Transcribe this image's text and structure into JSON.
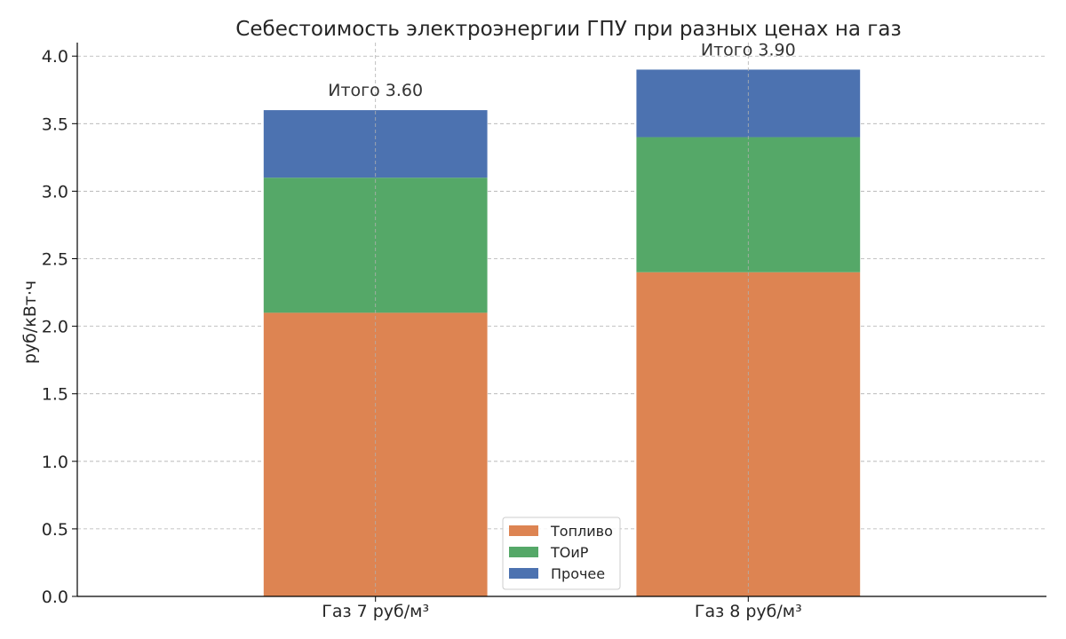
{
  "chart_data": {
    "type": "bar",
    "stacked": true,
    "title": "Себестоимость электроэнергии ГПУ при разных ценах на газ",
    "xlabel": "",
    "ylabel": "руб/кВт·ч",
    "ylim": [
      0,
      4.1
    ],
    "yticks": [
      "0.0",
      "0.5",
      "1.0",
      "1.5",
      "2.0",
      "2.5",
      "3.0",
      "3.5",
      "4.0"
    ],
    "grid": true,
    "legend_position": "bottom-center",
    "categories": [
      "Газ 7 руб/м³",
      "Газ 8 руб/м³"
    ],
    "series": [
      {
        "name": "Топливо",
        "values": [
          2.1,
          2.4
        ],
        "color": "#dd8452"
      },
      {
        "name": "ТОиР",
        "values": [
          1.0,
          1.0
        ],
        "color": "#55a868"
      },
      {
        "name": "Прочее",
        "values": [
          0.5,
          0.5
        ],
        "color": "#4c72b0"
      }
    ],
    "annotations": [
      "Итого 3.60",
      "Итого 3.90"
    ]
  }
}
